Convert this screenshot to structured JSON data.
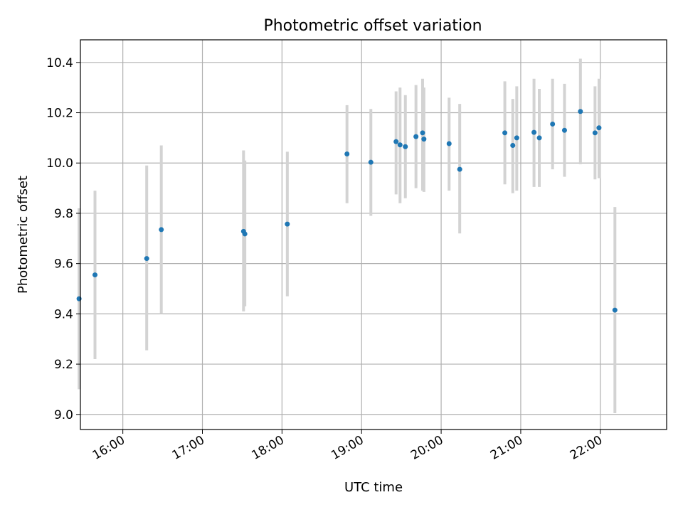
{
  "chart_data": {
    "type": "scatter",
    "title": "Photometric offset variation",
    "xlabel": "UTC time",
    "ylabel": "Photometric offset",
    "x_ticks": [
      "16:00",
      "17:00",
      "18:00",
      "19:00",
      "20:00",
      "21:00",
      "22:00"
    ],
    "y_ticks": [
      "9.0",
      "9.2",
      "9.4",
      "9.6",
      "9.8",
      "10.0",
      "10.2",
      "10.4"
    ],
    "xlim": [
      "15:28",
      "22:50"
    ],
    "ylim": [
      8.94,
      10.49
    ],
    "grid": true,
    "point_color": "#1f77b4",
    "errorbar_color": "#d3d3d3",
    "points": [
      {
        "time": "15:27",
        "y": 9.46,
        "lo": 9.1,
        "hi": 9.82
      },
      {
        "time": "15:39",
        "y": 9.555,
        "lo": 9.22,
        "hi": 9.89
      },
      {
        "time": "16:18",
        "y": 9.62,
        "lo": 9.255,
        "hi": 9.99
      },
      {
        "time": "16:29",
        "y": 9.735,
        "lo": 9.4,
        "hi": 10.07
      },
      {
        "time": "17:31",
        "y": 9.728,
        "lo": 9.41,
        "hi": 10.05
      },
      {
        "time": "17:32",
        "y": 9.718,
        "lo": 9.43,
        "hi": 10.01
      },
      {
        "time": "18:04",
        "y": 9.757,
        "lo": 9.47,
        "hi": 10.045
      },
      {
        "time": "18:49",
        "y": 10.036,
        "lo": 9.84,
        "hi": 10.23
      },
      {
        "time": "19:07",
        "y": 10.003,
        "lo": 9.79,
        "hi": 10.215
      },
      {
        "time": "19:26",
        "y": 10.085,
        "lo": 9.875,
        "hi": 10.285
      },
      {
        "time": "19:29",
        "y": 10.072,
        "lo": 9.84,
        "hi": 10.3
      },
      {
        "time": "19:33",
        "y": 10.065,
        "lo": 9.86,
        "hi": 10.27
      },
      {
        "time": "19:41",
        "y": 10.105,
        "lo": 9.9,
        "hi": 10.31
      },
      {
        "time": "19:46",
        "y": 10.12,
        "lo": 9.89,
        "hi": 10.335
      },
      {
        "time": "19:47",
        "y": 10.095,
        "lo": 9.885,
        "hi": 10.3
      },
      {
        "time": "20:06",
        "y": 10.077,
        "lo": 9.89,
        "hi": 10.26
      },
      {
        "time": "20:14",
        "y": 9.975,
        "lo": 9.72,
        "hi": 10.235
      },
      {
        "time": "20:48",
        "y": 10.12,
        "lo": 9.915,
        "hi": 10.325
      },
      {
        "time": "20:54",
        "y": 10.07,
        "lo": 9.88,
        "hi": 10.255
      },
      {
        "time": "20:57",
        "y": 10.1,
        "lo": 9.89,
        "hi": 10.305
      },
      {
        "time": "21:10",
        "y": 10.122,
        "lo": 9.905,
        "hi": 10.335
      },
      {
        "time": "21:14",
        "y": 10.1,
        "lo": 9.905,
        "hi": 10.295
      },
      {
        "time": "21:24",
        "y": 10.155,
        "lo": 9.975,
        "hi": 10.335
      },
      {
        "time": "21:33",
        "y": 10.13,
        "lo": 9.945,
        "hi": 10.315
      },
      {
        "time": "21:45",
        "y": 10.205,
        "lo": 9.995,
        "hi": 10.415
      },
      {
        "time": "21:56",
        "y": 10.12,
        "lo": 9.935,
        "hi": 10.305
      },
      {
        "time": "21:59",
        "y": 10.14,
        "lo": 9.94,
        "hi": 10.335
      },
      {
        "time": "22:11",
        "y": 9.415,
        "lo": 9.005,
        "hi": 9.825
      }
    ]
  }
}
